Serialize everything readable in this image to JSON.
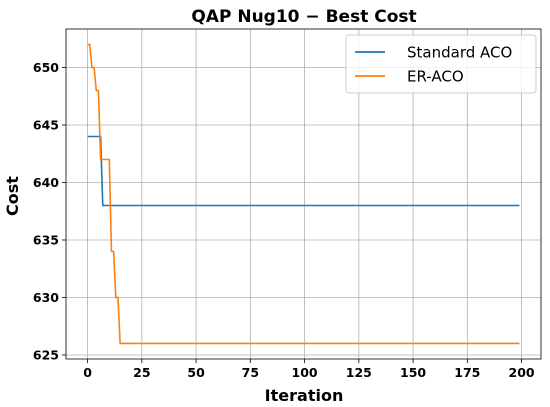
{
  "chart_data": {
    "type": "line",
    "title": "QAP Nug10 − Best Cost",
    "xlabel": "Iteration",
    "ylabel": "Cost",
    "xlim": [
      -9.95,
      208.95
    ],
    "ylim": [
      624.65,
      653.35
    ],
    "xticks": [
      0,
      25,
      50,
      75,
      100,
      125,
      150,
      175,
      200
    ],
    "yticks": [
      625,
      630,
      635,
      640,
      645,
      650
    ],
    "grid": true,
    "legend_position": "top-right",
    "series": [
      {
        "name": "Standard ACO",
        "color": "#1f77b4",
        "x": [
          0,
          6,
          7,
          199
        ],
        "y": [
          644,
          644,
          638,
          638
        ]
      },
      {
        "name": "ER-ACO",
        "color": "#ff7f0e",
        "x": [
          0,
          1,
          2,
          3,
          4,
          5,
          6,
          7,
          8,
          9,
          10,
          11,
          12,
          13,
          14,
          15,
          16,
          199
        ],
        "y": [
          652,
          652,
          650,
          650,
          648,
          648,
          642,
          642,
          642,
          642,
          642,
          634,
          634,
          630,
          630,
          626,
          626,
          626
        ]
      }
    ]
  }
}
